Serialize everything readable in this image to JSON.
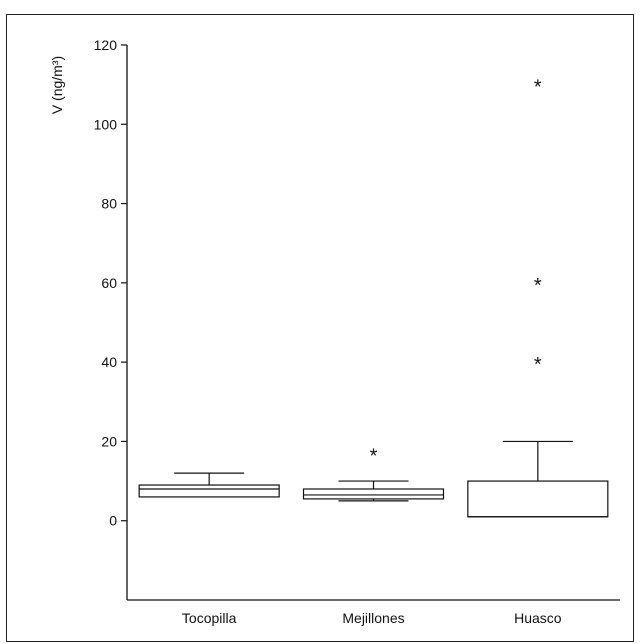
{
  "chart_data": {
    "type": "box",
    "ylabel": "V (ng/m³)",
    "ylim": [
      -20,
      120
    ],
    "yticks": [
      0,
      20,
      40,
      60,
      80,
      100,
      120
    ],
    "grid": false,
    "categories": [
      "Tocopilla",
      "Mejillones",
      "Huasco"
    ],
    "boxes": [
      {
        "category": "Tocopilla",
        "min": 6,
        "q1": 6,
        "median": 8,
        "q3": 9,
        "max": 12,
        "outliers": []
      },
      {
        "category": "Mejillones",
        "min": 5,
        "q1": 5.5,
        "median": 6.5,
        "q3": 8,
        "max": 10,
        "outliers": [
          17
        ]
      },
      {
        "category": "Huasco",
        "min": 1,
        "q1": 1,
        "median": 1,
        "q3": 10,
        "max": 20,
        "outliers": [
          40,
          60,
          110
        ]
      }
    ]
  }
}
